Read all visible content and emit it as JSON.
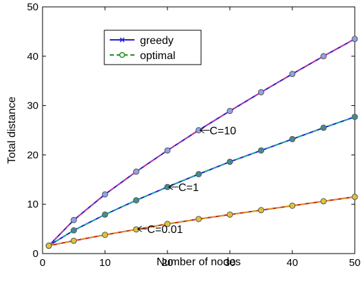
{
  "chart_data": {
    "type": "line",
    "title": "",
    "xlabel": "Number of nodes",
    "ylabel": "Total distance",
    "xlim": [
      0,
      50
    ],
    "ylim": [
      0,
      50
    ],
    "xticks": [
      0,
      10,
      20,
      30,
      40,
      50
    ],
    "yticks": [
      0,
      10,
      20,
      30,
      40,
      50
    ],
    "grid": false,
    "legend_position": "top-left-inside",
    "legend": [
      {
        "name": "greedy",
        "color": "#1f1fd6",
        "style": "solid",
        "marker": "x"
      },
      {
        "name": "optimal",
        "color": "#1f8f1f",
        "style": "dashed",
        "marker": "o"
      }
    ],
    "x": [
      1,
      5,
      10,
      15,
      20,
      25,
      30,
      35,
      40,
      45,
      50
    ],
    "groups": [
      {
        "annotation": "C=10",
        "annotation_at": [
          25,
          25
        ],
        "line_color": "#1f1fd6",
        "overlay_color": "#c0399b",
        "marker_fill": "#8fa3e6",
        "values": [
          1.6,
          6.8,
          12.0,
          16.6,
          20.9,
          25.0,
          28.9,
          32.7,
          36.4,
          40.0,
          43.5
        ]
      },
      {
        "annotation": "C=1",
        "annotation_at": [
          20,
          13.5
        ],
        "line_color": "#1f1fd6",
        "overlay_color": "#1aa99a",
        "marker_fill": "#3f8f8f",
        "values": [
          1.6,
          4.7,
          7.9,
          10.8,
          13.5,
          16.1,
          18.6,
          20.9,
          23.2,
          25.5,
          27.7
        ]
      },
      {
        "annotation": "C=0.01",
        "annotation_at": [
          15,
          5.0
        ],
        "line_color": "#d11a1a",
        "overlay_color": "#c99a1a",
        "marker_fill": "#e0c23a",
        "values": [
          1.6,
          2.6,
          3.8,
          4.9,
          6.0,
          7.0,
          7.9,
          8.8,
          9.7,
          10.6,
          11.5
        ]
      }
    ]
  }
}
